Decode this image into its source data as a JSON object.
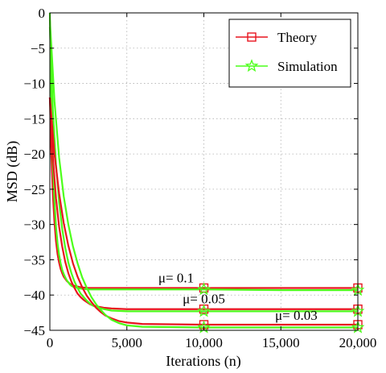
{
  "chart_data": {
    "type": "line",
    "xlabel": "Iterations (n)",
    "ylabel": "MSD (dB)",
    "xlim": [
      0,
      20000
    ],
    "ylim": [
      -45,
      0
    ],
    "xticks": [
      0,
      5000,
      10000,
      15000,
      20000
    ],
    "xtick_labels": [
      "0",
      "5,000",
      "10,000",
      "15,000",
      "20,000"
    ],
    "yticks": [
      0,
      -5,
      -10,
      -15,
      -20,
      -25,
      -30,
      -35,
      -40,
      -45
    ],
    "ytick_labels": [
      "0",
      "−5",
      "−10",
      "−15",
      "−20",
      "−25",
      "−30",
      "−35",
      "−40",
      "−45"
    ],
    "grid": true,
    "legend_position": "top-right",
    "legend": [
      {
        "name": "Theory",
        "color": "#e8141e",
        "marker": "square"
      },
      {
        "name": "Simulation",
        "color": "#4cff1a",
        "marker": "star"
      }
    ],
    "curves": [
      {
        "label": "μ= 0.1",
        "label_pos": [
          8200,
          -38.2
        ],
        "theory": {
          "x": [
            0,
            100,
            200,
            300,
            400,
            500,
            600,
            700,
            800,
            900,
            1000,
            1100,
            1200,
            1300,
            1400,
            1600,
            1800,
            2000,
            2500,
            3000,
            5000,
            10000,
            15000,
            20000
          ],
          "y": [
            -12,
            -20.3,
            -25.9,
            -29.7,
            -32.4,
            -34.2,
            -35.4,
            -36.3,
            -36.9,
            -37.4,
            -37.7,
            -38.0,
            -38.2,
            -38.4,
            -38.5,
            -38.7,
            -38.8,
            -38.9,
            -39.0,
            -39.0,
            -39.0,
            -39.0,
            -39.0,
            -39.0
          ]
        },
        "simulation": {
          "x": [
            0,
            100,
            200,
            300,
            400,
            500,
            600,
            700,
            800,
            900,
            1000,
            1100,
            1200,
            1300,
            1400,
            1600,
            1800,
            2000,
            2500,
            3000,
            5000,
            10000,
            15000,
            20000
          ],
          "y": [
            0,
            -13.5,
            -21.5,
            -26.8,
            -30.3,
            -32.7,
            -34.3,
            -35.5,
            -36.4,
            -37.0,
            -37.5,
            -37.9,
            -38.2,
            -38.5,
            -38.7,
            -38.9,
            -39.0,
            -39.1,
            -39.2,
            -39.2,
            -39.2,
            -39.2,
            -39.3,
            -39.3
          ]
        },
        "markers_x": [
          10000,
          20000
        ]
      },
      {
        "label": "μ= 0.05",
        "label_pos": [
          10000,
          -41.2
        ],
        "theory": {
          "x": [
            0,
            200,
            400,
            600,
            800,
            1000,
            1200,
            1400,
            1600,
            1800,
            2000,
            2200,
            2400,
            2600,
            2800,
            3000,
            3500,
            4000,
            5000,
            10000,
            15000,
            20000
          ],
          "y": [
            -12,
            -20.6,
            -26.3,
            -30.3,
            -33.1,
            -35.3,
            -36.9,
            -38.1,
            -39.0,
            -39.8,
            -40.3,
            -40.7,
            -41.0,
            -41.3,
            -41.5,
            -41.6,
            -41.8,
            -41.9,
            -42.0,
            -42.0,
            -42.0,
            -42.0
          ]
        },
        "simulation": {
          "x": [
            0,
            200,
            400,
            600,
            800,
            1000,
            1200,
            1400,
            1600,
            1800,
            2000,
            2200,
            2400,
            2600,
            2800,
            3000,
            3500,
            4000,
            5000,
            10000,
            15000,
            20000
          ],
          "y": [
            -2,
            -14.0,
            -21.5,
            -26.8,
            -30.6,
            -33.3,
            -35.4,
            -36.9,
            -38.1,
            -39.0,
            -39.8,
            -40.3,
            -40.8,
            -41.2,
            -41.5,
            -41.7,
            -42.0,
            -42.2,
            -42.3,
            -42.3,
            -42.3,
            -42.3
          ]
        },
        "markers_x": [
          10000,
          20000
        ]
      },
      {
        "label": "μ= 0.03",
        "label_pos": [
          16000,
          -43.5
        ],
        "theory": {
          "x": [
            0,
            300,
            600,
            900,
            1200,
            1500,
            1800,
            2100,
            2400,
            2700,
            3000,
            3300,
            3600,
            4000,
            4500,
            5000,
            6000,
            10000,
            15000,
            20000
          ],
          "y": [
            -12,
            -20.0,
            -25.6,
            -29.8,
            -33.0,
            -35.5,
            -37.4,
            -38.9,
            -40.1,
            -41.0,
            -41.8,
            -42.4,
            -42.9,
            -43.3,
            -43.7,
            -43.9,
            -44.1,
            -44.2,
            -44.2,
            -44.2
          ]
        },
        "simulation": {
          "x": [
            0,
            300,
            600,
            900,
            1200,
            1500,
            1800,
            2100,
            2400,
            2700,
            3000,
            3300,
            3600,
            4000,
            4500,
            5000,
            6000,
            10000,
            15000,
            20000
          ],
          "y": [
            -1,
            -12.5,
            -20.5,
            -26.0,
            -30.0,
            -33.1,
            -35.5,
            -37.5,
            -39.0,
            -40.3,
            -41.3,
            -42.1,
            -42.8,
            -43.5,
            -44.0,
            -44.3,
            -44.5,
            -44.6,
            -44.6,
            -44.6
          ]
        },
        "markers_x": [
          10000,
          20000
        ]
      }
    ]
  }
}
